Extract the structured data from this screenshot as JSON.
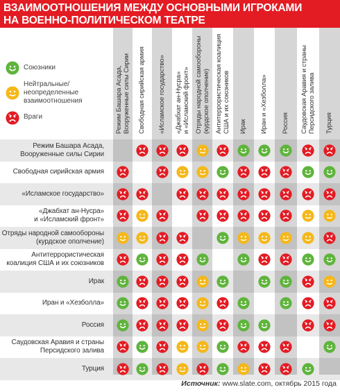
{
  "title": {
    "line1": "ВЗАИМООТНОШЕНИЯ МЕЖДУ ОСНОВНЫМИ ИГРОКАМИ",
    "line2": "НА ВОЕННО-ПОЛИТИЧЕСКОМ ТЕАТРЕ"
  },
  "legend": {
    "ally": "Союзники",
    "neutral": [
      "Нейтральные/",
      "неопределенные",
      "взаимоотношения"
    ],
    "enemy": "Враги"
  },
  "colors": {
    "title_bg": "#e31b23",
    "ally": "#5fb43c",
    "neutral": "#f5b81a",
    "enemy": "#e31b23",
    "alt_column": "#d6d6d6",
    "alt_row": "#e8e8e8"
  },
  "chart_data": {
    "type": "table",
    "columns": [
      [
        "Режим Башара Асада,",
        "Вооруженные силы Сирии"
      ],
      [
        "Свободная сирийская армия"
      ],
      [
        "«Исламское государство»"
      ],
      [
        "«Джабхат ан-Нусра»",
        "и «Исламский фронт»"
      ],
      [
        "Отряды народной самообороны",
        "(курдское ополчение)"
      ],
      [
        "Антитеррористическая коалиция",
        "США и их союзников"
      ],
      [
        "Ирак"
      ],
      [
        "Иран и «Хезболла»"
      ],
      [
        "Россия"
      ],
      [
        "Саудовская Аравия и страны",
        "Персидского залива"
      ],
      [
        "Турция"
      ]
    ],
    "rows": [
      [
        "Режим Башара Асада,",
        "Вооруженные силы Сирии"
      ],
      [
        "Свободная сирийская армия"
      ],
      [
        "«Исламское государство»"
      ],
      [
        "«Джабхат ан-Нусра»",
        "и «Исламский фронт»"
      ],
      [
        "Отряды народной самообороны",
        "(курдское ополчение)"
      ],
      [
        "Антитеррористическая",
        "коалиция США и их союзников"
      ],
      [
        "Ирак"
      ],
      [
        "Иран и «Хезболла»"
      ],
      [
        "Россия"
      ],
      [
        "Саудовская Аравия и страны",
        "Персидского залива"
      ],
      [
        "Турция"
      ]
    ],
    "legend_key": {
      "A": "ally",
      "N": "neutral",
      "E": "enemy",
      "-": "none"
    },
    "matrix": [
      [
        "-",
        "E",
        "E",
        "E",
        "N",
        "E",
        "A",
        "A",
        "A",
        "E",
        "E"
      ],
      [
        "E",
        "-",
        "E",
        "N",
        "N",
        "A",
        "E",
        "E",
        "E",
        "A",
        "A"
      ],
      [
        "E",
        "E",
        "-",
        "E",
        "E",
        "E",
        "E",
        "E",
        "E",
        "E",
        "E"
      ],
      [
        "E",
        "N",
        "E",
        "-",
        "E",
        "E",
        "E",
        "E",
        "E",
        "N",
        "N"
      ],
      [
        "N",
        "N",
        "E",
        "E",
        "-",
        "A",
        "N",
        "N",
        "N",
        "N",
        "E"
      ],
      [
        "E",
        "A",
        "E",
        "E",
        "A",
        "-",
        "A",
        "E",
        "E",
        "A",
        "A"
      ],
      [
        "A",
        "E",
        "E",
        "E",
        "N",
        "A",
        "-",
        "A",
        "A",
        "E",
        "N"
      ],
      [
        "A",
        "E",
        "E",
        "E",
        "N",
        "E",
        "A",
        "-",
        "A",
        "E",
        "E"
      ],
      [
        "A",
        "E",
        "E",
        "E",
        "N",
        "E",
        "A",
        "A",
        "-",
        "E",
        "E"
      ],
      [
        "E",
        "A",
        "E",
        "N",
        "N",
        "A",
        "E",
        "E",
        "E",
        "-",
        "A"
      ],
      [
        "E",
        "A",
        "E",
        "N",
        "E",
        "A",
        "N",
        "E",
        "E",
        "A",
        "-"
      ]
    ]
  },
  "source": {
    "label": "Источник:",
    "text": "www.slate.com, октябрь 2015 года"
  }
}
